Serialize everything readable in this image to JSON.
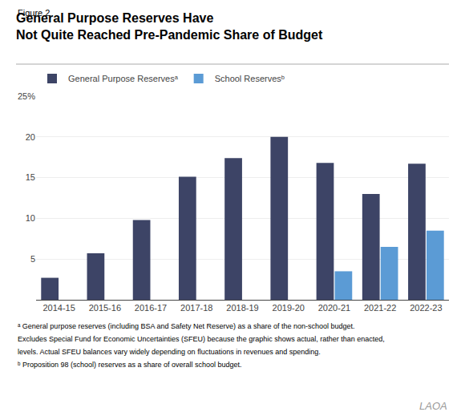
{
  "chart_data": {
    "type": "bar",
    "title": "General Purpose Reserves Have\nNot Quite Reached Pre-Pandemic Share of Budget",
    "categories": [
      "2014-15",
      "2015-16",
      "2016-17",
      "2017-18",
      "2018-19",
      "2019-20",
      "2020-21",
      "2021-22",
      "2022-23"
    ],
    "series": [
      {
        "name": "General Purpose Reservesᵃ",
        "color": "#3d4466",
        "values": [
          2.7,
          5.7,
          9.8,
          15.1,
          17.4,
          20.0,
          16.8,
          13.0,
          16.7
        ]
      },
      {
        "name": "School Reservesᵇ",
        "color": "#5b9bd5",
        "values": [
          null,
          null,
          null,
          null,
          null,
          null,
          3.5,
          6.5,
          8.5
        ]
      }
    ],
    "ylim": [
      0,
      25
    ],
    "yticks": [
      5,
      10,
      15,
      20,
      {
        "value": 25,
        "label": "25%"
      }
    ],
    "grid": true,
    "legend": "upper left",
    "annotations": [
      "Figure 2",
      "ᵃ General purpose reserves (including BSA and Safety Net Reserve) as a share of the non-school budget.",
      "Excludes Special Fund for Economic Uncertainties (SFEU) because the graphic shows actual, rather than enacted,",
      "levels. Actual SFEU balances vary widely depending on fluctuations in revenues and spending.",
      "ᵇ Proposition 98 (school) reserves as a share of overall school budget.",
      "LAOA"
    ]
  }
}
